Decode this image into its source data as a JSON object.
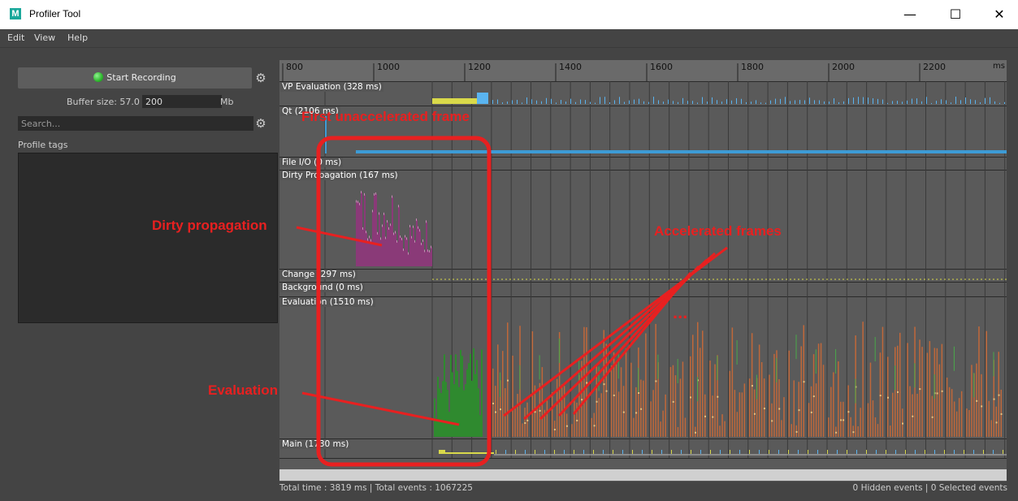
{
  "window": {
    "title": "Profiler Tool",
    "app_icon": "M",
    "minimize": "—",
    "maximize": "☐",
    "close": "✕"
  },
  "menu": [
    "Edit",
    "View",
    "Help"
  ],
  "recording": {
    "button_label": "Start Recording",
    "status_color": "#2db82d"
  },
  "buffer": {
    "label": "Buffer size: 57.0 /",
    "value": "200",
    "unit": "Mb"
  },
  "search": {
    "placeholder": "Search..."
  },
  "profile_tags": {
    "label": "Profile tags"
  },
  "ruler": {
    "ticks": [
      "800",
      "1000",
      "1200",
      "1400",
      "1600",
      "1800",
      "2000",
      "2200"
    ],
    "unit": "ms"
  },
  "rows": [
    {
      "label": "VP Evaluation (328 ms)"
    },
    {
      "label": "Qt (2106 ms)"
    },
    {
      "label": "File I/O (0 ms)"
    },
    {
      "label": "Dirty Propagation (167 ms)"
    },
    {
      "label": "Change (297 ms)"
    },
    {
      "label": "Background (0 ms)"
    },
    {
      "label": "Evaluation (1510 ms)"
    },
    {
      "label": "Main (1730 ms)"
    }
  ],
  "status": {
    "left": "Total time : 3819 ms | Total events : 1067225",
    "right": "0 Hidden events | 0 Selected events"
  },
  "annotations": {
    "first_unaccelerated": "First unaccelerated frame",
    "dirty_propagation": "Dirty propagation",
    "accelerated_frames": "Accelerated frames",
    "ellipsis": "...",
    "evaluation": "Evaluation"
  },
  "colors": {
    "annotation": "#e82020",
    "dirty_propagation": "#8a3a78",
    "evaluation_initial": "#2f8a2f",
    "evaluation_accelerated": "#c0683a",
    "qt_bar": "#3d9bd6"
  }
}
